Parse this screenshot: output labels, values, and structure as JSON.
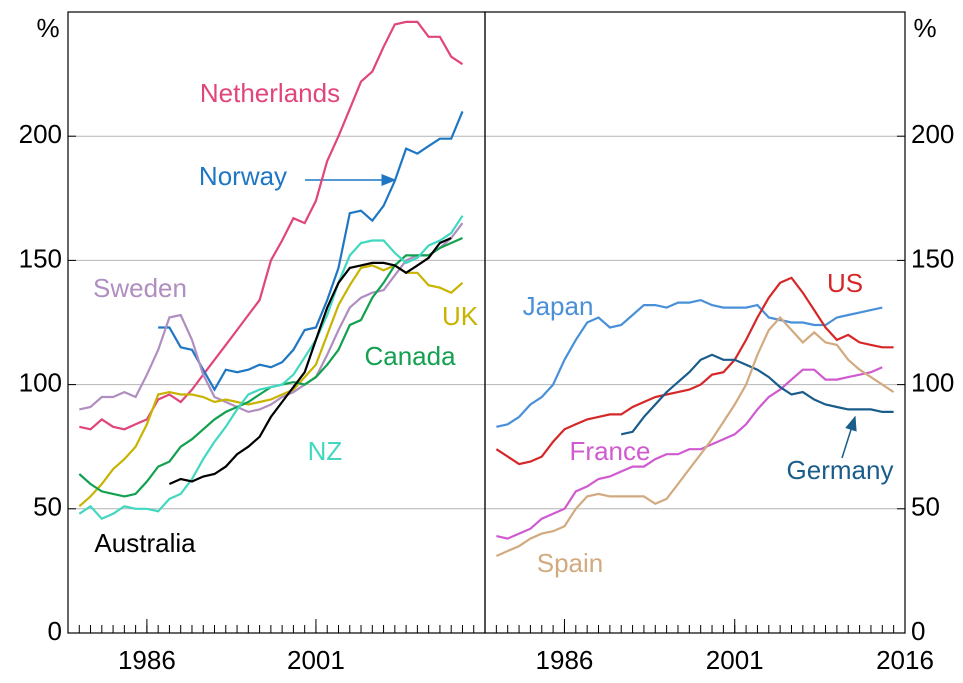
{
  "chart_data": [
    {
      "type": "line",
      "y_label": "%",
      "x": [
        1980,
        1981,
        1982,
        1983,
        1984,
        1985,
        1986,
        1987,
        1988,
        1989,
        1990,
        1991,
        1992,
        1993,
        1994,
        1995,
        1996,
        1997,
        1998,
        1999,
        2000,
        2001,
        2002,
        2003,
        2004,
        2005,
        2006,
        2007,
        2008,
        2009,
        2010,
        2011,
        2012,
        2013,
        2014,
        2015
      ],
      "xlim": [
        1979,
        2016
      ],
      "xticks": [
        1986,
        2001
      ],
      "ylim": [
        0,
        250
      ],
      "yticks": [
        0,
        50,
        100,
        150,
        200
      ],
      "grid": true,
      "series": [
        {
          "name": "Netherlands",
          "color": "#e0457b",
          "values": [
            83,
            82,
            86,
            83,
            82,
            84,
            86,
            94,
            96,
            93,
            98,
            104,
            110,
            116,
            122,
            128,
            134,
            150,
            158,
            167,
            165,
            174,
            190,
            200,
            211,
            222,
            226,
            236,
            245,
            246,
            246,
            240,
            240,
            232,
            229,
            null
          ]
        },
        {
          "name": "Norway",
          "color": "#1f77c4",
          "values": [
            null,
            null,
            null,
            null,
            null,
            null,
            null,
            123,
            123,
            115,
            114,
            106,
            98,
            106,
            105,
            106,
            108,
            107,
            109,
            114,
            122,
            123,
            134,
            147,
            169,
            170,
            166,
            172,
            182,
            195,
            193,
            196,
            199,
            199,
            210,
            null
          ]
        },
        {
          "name": "Sweden",
          "color": "#b08ec0",
          "values": [
            90,
            91,
            95,
            95,
            97,
            95,
            104,
            114,
            127,
            128,
            118,
            104,
            95,
            93,
            91,
            89,
            90,
            92,
            95,
            97,
            100,
            103,
            112,
            122,
            131,
            135,
            137,
            138,
            144,
            150,
            152,
            152,
            155,
            159,
            165,
            null
          ]
        },
        {
          "name": "UK",
          "color": "#c8b400",
          "values": [
            51,
            55,
            60,
            66,
            70,
            75,
            84,
            96,
            97,
            96,
            96,
            95,
            93,
            94,
            93,
            92,
            93,
            94,
            96,
            98,
            103,
            108,
            120,
            132,
            140,
            147,
            148,
            146,
            148,
            145,
            145,
            140,
            139,
            137,
            141,
            null
          ]
        },
        {
          "name": "Canada",
          "color": "#13a050",
          "values": [
            64,
            60,
            57,
            56,
            55,
            56,
            61,
            67,
            69,
            75,
            78,
            82,
            86,
            89,
            91,
            93,
            96,
            99,
            100,
            101,
            100,
            103,
            108,
            114,
            124,
            126,
            135,
            141,
            148,
            152,
            152,
            152,
            155,
            157,
            159,
            null
          ]
        },
        {
          "name": "NZ",
          "color": "#40d8c0",
          "values": [
            48,
            51,
            46,
            48,
            51,
            50,
            50,
            49,
            54,
            56,
            62,
            70,
            77,
            83,
            90,
            96,
            98,
            99,
            100,
            104,
            111,
            118,
            128,
            141,
            152,
            157,
            158,
            158,
            153,
            149,
            151,
            156,
            158,
            161,
            168,
            null
          ]
        },
        {
          "name": "Australia",
          "color": "#000000",
          "values": [
            null,
            null,
            null,
            null,
            null,
            null,
            null,
            null,
            60,
            62,
            61,
            63,
            64,
            67,
            72,
            75,
            79,
            87,
            93,
            99,
            105,
            118,
            131,
            141,
            147,
            148,
            149,
            149,
            148,
            145,
            148,
            151,
            157,
            159,
            null,
            null
          ]
        }
      ]
    },
    {
      "type": "line",
      "y_label": "%",
      "x": [
        1980,
        1981,
        1982,
        1983,
        1984,
        1985,
        1986,
        1987,
        1988,
        1989,
        1990,
        1991,
        1992,
        1993,
        1994,
        1995,
        1996,
        1997,
        1998,
        1999,
        2000,
        2001,
        2002,
        2003,
        2004,
        2005,
        2006,
        2007,
        2008,
        2009,
        2010,
        2011,
        2012,
        2013,
        2014,
        2015
      ],
      "xlim": [
        1979,
        2016
      ],
      "xticks": [
        1986,
        2001,
        2016
      ],
      "ylim": [
        0,
        250
      ],
      "yticks": [
        0,
        50,
        100,
        150,
        200
      ],
      "grid": true,
      "series": [
        {
          "name": "Japan",
          "color": "#4a90d9",
          "values": [
            83,
            84,
            87,
            92,
            95,
            100,
            110,
            118,
            125,
            127,
            123,
            124,
            128,
            132,
            132,
            131,
            133,
            133,
            134,
            132,
            131,
            131,
            131,
            132,
            127,
            126,
            125,
            125,
            124,
            124,
            127,
            128,
            129,
            130,
            131,
            null
          ]
        },
        {
          "name": "US",
          "color": "#d62728",
          "values": [
            74,
            71,
            68,
            69,
            71,
            77,
            82,
            84,
            86,
            87,
            88,
            88,
            91,
            93,
            95,
            96,
            97,
            98,
            100,
            104,
            105,
            110,
            118,
            127,
            135,
            141,
            143,
            137,
            130,
            123,
            118,
            120,
            117,
            116,
            115,
            115
          ]
        },
        {
          "name": "France",
          "color": "#d05ad0",
          "values": [
            39,
            38,
            40,
            42,
            46,
            48,
            50,
            57,
            59,
            62,
            63,
            65,
            67,
            67,
            70,
            72,
            72,
            74,
            74,
            76,
            78,
            80,
            84,
            90,
            95,
            98,
            102,
            106,
            106,
            102,
            102,
            103,
            104,
            105,
            107,
            null
          ]
        },
        {
          "name": "Germany",
          "color": "#1a5c8a",
          "values": [
            null,
            null,
            null,
            null,
            null,
            null,
            null,
            null,
            null,
            null,
            null,
            80,
            81,
            87,
            92,
            97,
            101,
            105,
            110,
            112,
            110,
            110,
            108,
            106,
            103,
            99,
            96,
            97,
            94,
            92,
            91,
            90,
            90,
            90,
            89,
            89
          ]
        },
        {
          "name": "Spain",
          "color": "#d2aa80",
          "values": [
            31,
            33,
            35,
            38,
            40,
            41,
            43,
            50,
            55,
            56,
            55,
            55,
            55,
            55,
            52,
            54,
            60,
            66,
            72,
            78,
            85,
            92,
            100,
            112,
            122,
            127,
            122,
            117,
            121,
            117,
            116,
            110,
            106,
            103,
            100,
            97
          ]
        }
      ]
    }
  ]
}
